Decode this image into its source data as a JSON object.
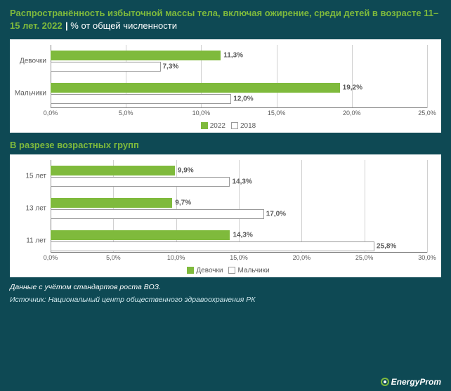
{
  "colors": {
    "background": "#0e4954",
    "panel_bg": "#ffffff",
    "accent_green": "#7fba3c",
    "text_light": "#ffffff",
    "text_dark": "#5a5a5a",
    "grid": "#d0d0d0",
    "axis": "#808080",
    "bar_outline": "#9a9a9a"
  },
  "title": {
    "main": "Распространённость избыточной массы тела, включая ожирение, среди детей в возрасте 11–15 лет. 2022",
    "separator": " | ",
    "sub": "% от общей численности",
    "fontsize": 13
  },
  "chart1": {
    "type": "bar",
    "orientation": "horizontal",
    "xlim": [
      0,
      25
    ],
    "xtick_step": 5,
    "xticks": [
      "0,0%",
      "5,0%",
      "10,0%",
      "15,0%",
      "20,0%",
      "25,0%"
    ],
    "series": [
      {
        "name": "2022",
        "color": "#7fba3c",
        "style": "solid"
      },
      {
        "name": "2018",
        "color": "#ffffff",
        "style": "outline"
      }
    ],
    "categories": [
      {
        "label": "Девочки",
        "bars": [
          {
            "series": 0,
            "value": 11.3,
            "label": "11,3%"
          },
          {
            "series": 1,
            "value": 7.3,
            "label": "7,3%"
          }
        ]
      },
      {
        "label": "Мальчики",
        "bars": [
          {
            "series": 0,
            "value": 19.2,
            "label": "19,2%"
          },
          {
            "series": 1,
            "value": 12.0,
            "label": "12,0%"
          }
        ]
      }
    ],
    "legend": [
      "2022",
      "2018"
    ]
  },
  "subtitle": "В разрезе возрастных групп",
  "chart2": {
    "type": "bar",
    "orientation": "horizontal",
    "xlim": [
      0,
      30
    ],
    "xtick_step": 5,
    "xticks": [
      "0,0%",
      "5,0%",
      "10,0%",
      "15,0%",
      "20,0%",
      "25,0%",
      "30,0%"
    ],
    "series": [
      {
        "name": "Девочки",
        "color": "#7fba3c",
        "style": "solid"
      },
      {
        "name": "Мальчики",
        "color": "#ffffff",
        "style": "outline"
      }
    ],
    "categories": [
      {
        "label": "15 лет",
        "bars": [
          {
            "series": 0,
            "value": 9.9,
            "label": "9,9%"
          },
          {
            "series": 1,
            "value": 14.3,
            "label": "14,3%"
          }
        ]
      },
      {
        "label": "13 лет",
        "bars": [
          {
            "series": 0,
            "value": 9.7,
            "label": "9,7%"
          },
          {
            "series": 1,
            "value": 17.0,
            "label": "17,0%"
          }
        ]
      },
      {
        "label": "11 лет",
        "bars": [
          {
            "series": 0,
            "value": 14.3,
            "label": "14,3%"
          },
          {
            "series": 1,
            "value": 25.8,
            "label": "25,8%"
          }
        ]
      }
    ],
    "legend": [
      "Девочки",
      "Мальчики"
    ]
  },
  "note": "Данные с учётом стандартов роста ВОЗ.",
  "source": "Источник: Национальный центр общественного здравоохранения РК",
  "brand": "EnergyProm"
}
